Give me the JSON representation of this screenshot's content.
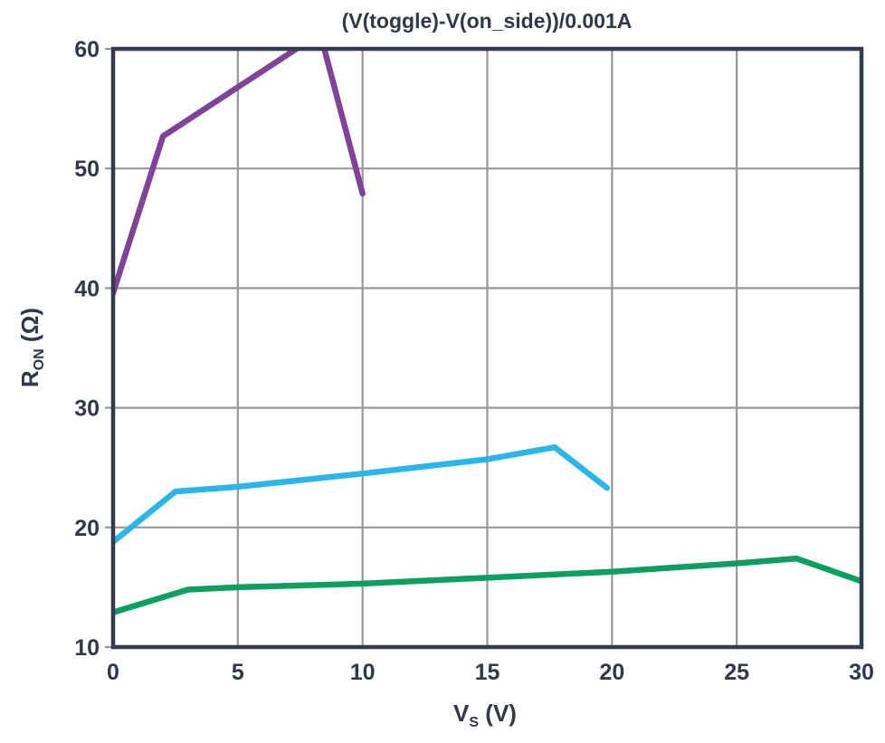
{
  "page": {
    "background": "#ffffff"
  },
  "chart_data": {
    "type": "line",
    "title": "(V(toggle)-V(on_side))/0.001A",
    "xlabel": {
      "base": "V",
      "sub": "S",
      "unit": " (V)"
    },
    "ylabel": {
      "base": "R",
      "sub": "ON",
      "unit": " (Ω)"
    },
    "xlim": [
      0,
      30
    ],
    "ylim": [
      10,
      60
    ],
    "xticks": [
      0,
      5,
      10,
      15,
      20,
      25,
      30
    ],
    "yticks": [
      10,
      20,
      30,
      40,
      50,
      60
    ],
    "grid": true,
    "legend_position": "none",
    "axis_color": "#343b4c",
    "grid_color": "#96989c",
    "text_color": "#323848",
    "series": [
      {
        "name": "purple-trace",
        "color": "#7f4399",
        "points": [
          [
            0,
            39.6
          ],
          [
            2,
            52.7
          ],
          [
            8.3,
            61.3
          ],
          [
            10,
            47.9
          ]
        ]
      },
      {
        "name": "cyan-trace",
        "color": "#2ab6e9",
        "points": [
          [
            0,
            18.8
          ],
          [
            2.5,
            23.0
          ],
          [
            5,
            23.4
          ],
          [
            10,
            24.5
          ],
          [
            15,
            25.7
          ],
          [
            17.7,
            26.7
          ],
          [
            19.8,
            23.3
          ]
        ]
      },
      {
        "name": "green-trace",
        "color": "#0c9f61",
        "points": [
          [
            0,
            12.9
          ],
          [
            3,
            14.8
          ],
          [
            5,
            15.0
          ],
          [
            10,
            15.3
          ],
          [
            15,
            15.8
          ],
          [
            20,
            16.3
          ],
          [
            25,
            17.0
          ],
          [
            27.4,
            17.4
          ],
          [
            30,
            15.5
          ]
        ]
      }
    ]
  }
}
